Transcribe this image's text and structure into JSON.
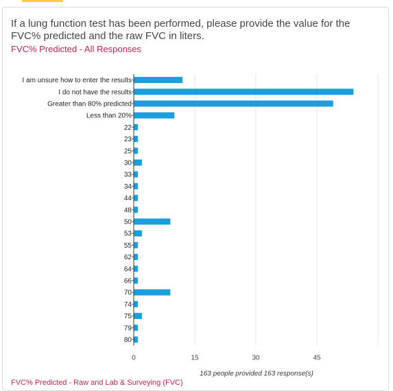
{
  "question": "If a lung function test has been performed, please provide the value for the FVC% predicted and the raw FVC in liters.",
  "subtitle": "FVC% Predicted - All Responses",
  "footer_link": "FVC% Predicted - Raw and Lab & Surveying (FVC)",
  "colors": {
    "bar": "#1a9fdc",
    "subtitle": "#c7254e",
    "grid": "#e4e4e4",
    "accent": "#f5d23c"
  },
  "chart_data": {
    "type": "bar",
    "orientation": "horizontal",
    "categories": [
      "I am unsure how to enter the results",
      "I do not have the results",
      "Greater than 80% predicted",
      "Less than 20%",
      "22",
      "23",
      "25",
      "30",
      "33",
      "34",
      "44",
      "48",
      "50",
      "53",
      "55",
      "62",
      "64",
      "66",
      "70",
      "74",
      "75",
      "79",
      "80"
    ],
    "values": [
      12,
      54,
      49,
      10,
      1,
      1,
      1,
      2,
      1,
      1,
      1,
      1,
      9,
      2,
      1,
      1,
      1,
      1,
      9,
      1,
      2,
      1,
      1
    ],
    "xlim": [
      0,
      60
    ],
    "xticks": [
      0,
      15,
      30,
      45
    ],
    "grid": true,
    "caption": "163 people provided 163 response(s)"
  }
}
